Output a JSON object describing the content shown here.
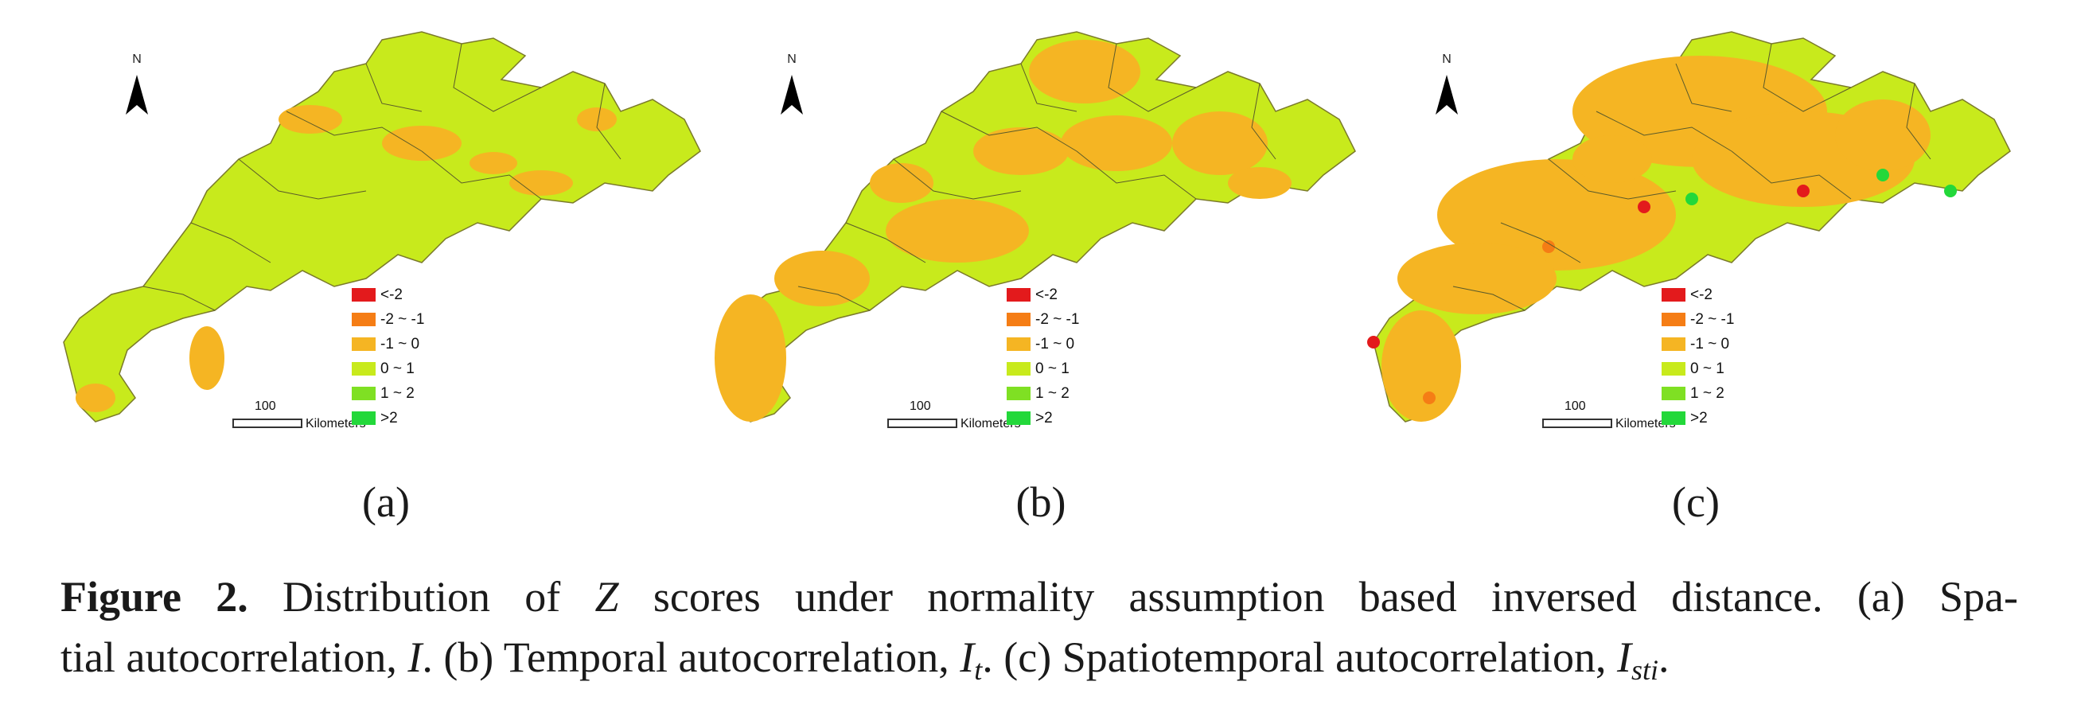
{
  "figure": {
    "panels": [
      {
        "label": "(a)",
        "north_label": "N",
        "legend": [
          {
            "label": "<-2",
            "color": "#e31a1c"
          },
          {
            "label": "-2 ~ -1",
            "color": "#f57d15"
          },
          {
            "label": "-1 ~ 0",
            "color": "#f5b523"
          },
          {
            "label": "0 ~ 1",
            "color": "#c8ea1c"
          },
          {
            "label": "1 ~ 2",
            "color": "#7fe023"
          },
          {
            "label": ">2",
            "color": "#23d83a"
          }
        ],
        "scale_value": "100",
        "scale_unit": "Kilometers",
        "dominant_color": "#c8ea1c"
      },
      {
        "label": "(b)",
        "north_label": "N",
        "legend": [
          {
            "label": "<-2",
            "color": "#e31a1c"
          },
          {
            "label": "-2 ~ -1",
            "color": "#f57d15"
          },
          {
            "label": "-1 ~ 0",
            "color": "#f5b523"
          },
          {
            "label": "0 ~ 1",
            "color": "#c8ea1c"
          },
          {
            "label": "1 ~ 2",
            "color": "#7fe023"
          },
          {
            "label": ">2",
            "color": "#23d83a"
          }
        ],
        "scale_value": "100",
        "scale_unit": "Kilometers",
        "dominant_color": "#c8ea1c"
      },
      {
        "label": "(c)",
        "north_label": "N",
        "legend": [
          {
            "label": "<-2",
            "color": "#e31a1c"
          },
          {
            "label": "-2 ~ -1",
            "color": "#f57d15"
          },
          {
            "label": "-1 ~ 0",
            "color": "#f5b523"
          },
          {
            "label": "0 ~ 1",
            "color": "#c8ea1c"
          },
          {
            "label": "1 ~ 2",
            "color": "#7fe023"
          },
          {
            "label": ">2",
            "color": "#23d83a"
          }
        ],
        "scale_value": "100",
        "scale_unit": "Kilometers",
        "dominant_color": "#c8ea1c"
      }
    ],
    "caption": {
      "figure_label": "Figure 2.",
      "line1_text_a": " Distribution of ",
      "line1_var": "Z",
      "line1_text_b": " scores under normality assumption based inversed distance. (a) Spa-",
      "line2_text_a": "tial autocorrelation, ",
      "line2_var_i": "I",
      "line2_text_b": ". (b) Temporal autocorrelation, ",
      "line2_var_it": "I",
      "line2_sub_t": "t",
      "line2_text_c": ". (c) Spatiotemporal autocorrelation, ",
      "line2_var_isti": "I",
      "line2_sub_sti": "sti",
      "line2_text_d": "."
    }
  }
}
